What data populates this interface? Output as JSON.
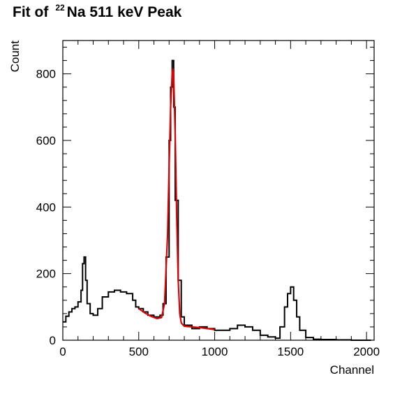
{
  "chart_data": {
    "type": "line",
    "title_prefix": "Fit of",
    "title_isotope_mass": "22",
    "title_main": "Na 511 keV Peak",
    "xlabel": "Channel",
    "ylabel": "Count",
    "xlim": [
      0,
      2050
    ],
    "ylim": [
      0,
      900
    ],
    "x_ticks": [
      0,
      500,
      1000,
      1500,
      2000
    ],
    "y_ticks": [
      0,
      200,
      400,
      600,
      800
    ],
    "grid": false,
    "legend": "none",
    "series": [
      {
        "role": "histogram",
        "color": "#000000",
        "x": [
          0,
          20,
          40,
          60,
          80,
          100,
          120,
          130,
          140,
          150,
          160,
          180,
          200,
          230,
          260,
          300,
          340,
          380,
          420,
          460,
          480,
          500,
          530,
          560,
          600,
          640,
          660,
          680,
          700,
          710,
          720,
          730,
          740,
          760,
          780,
          800,
          850,
          900,
          950,
          1000,
          1050,
          1100,
          1150,
          1200,
          1250,
          1300,
          1350,
          1400,
          1430,
          1460,
          1480,
          1500,
          1520,
          1540,
          1560,
          1600,
          1650,
          1700,
          1800,
          1900,
          2000,
          2030
        ],
        "y": [
          55,
          72,
          85,
          95,
          100,
          115,
          150,
          230,
          250,
          180,
          110,
          80,
          75,
          95,
          130,
          145,
          150,
          145,
          140,
          120,
          100,
          95,
          85,
          75,
          70,
          75,
          110,
          250,
          600,
          760,
          840,
          700,
          420,
          180,
          70,
          45,
          35,
          40,
          35,
          30,
          30,
          35,
          45,
          40,
          30,
          15,
          10,
          6,
          40,
          100,
          140,
          160,
          120,
          70,
          30,
          8,
          3,
          2,
          1,
          0,
          0,
          0
        ]
      },
      {
        "role": "fit",
        "color": "#e00000",
        "x": [
          500,
          540,
          580,
          620,
          650,
          670,
          690,
          700,
          710,
          720,
          725,
          730,
          740,
          750,
          760,
          770,
          780,
          800,
          850,
          900,
          950,
          1000
        ],
        "y": [
          95,
          82,
          72,
          65,
          68,
          110,
          320,
          520,
          700,
          800,
          815,
          795,
          620,
          370,
          180,
          80,
          52,
          42,
          40,
          38,
          35,
          32
        ]
      }
    ]
  }
}
